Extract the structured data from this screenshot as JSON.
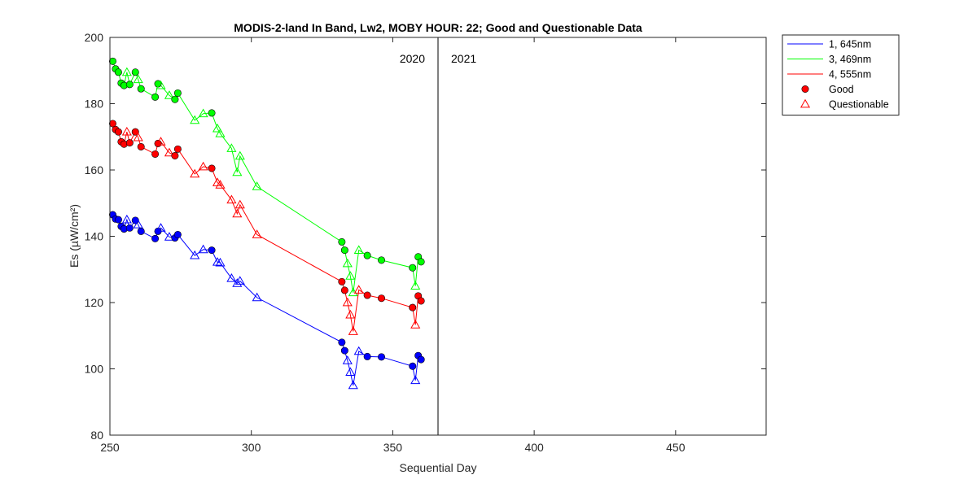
{
  "chart_data": {
    "type": "line",
    "title": "MODIS-2-land In Band,  Lw2, MOBY HOUR: 22;  Good and Questionable Data",
    "xlabel": "Sequential Day",
    "ylabel": "Es (µW/cm²)",
    "xlim": [
      250,
      482
    ],
    "ylim": [
      80,
      200
    ],
    "xticks": [
      250,
      300,
      350,
      400,
      450
    ],
    "yticks": [
      80,
      100,
      120,
      140,
      160,
      180,
      200
    ],
    "year_divider_x": 366,
    "annotations": [
      {
        "text": "2020",
        "x": 366,
        "side": "left"
      },
      {
        "text": "2021",
        "x": 366,
        "side": "right"
      }
    ],
    "legend": {
      "position": "outside-top-right",
      "entries": [
        {
          "label": "1, 645nm",
          "kind": "line",
          "color": "#0000ff"
        },
        {
          "label": "3, 469nm",
          "kind": "line",
          "color": "#00ff00"
        },
        {
          "label": "4, 555nm",
          "kind": "line",
          "color": "#ff0000"
        },
        {
          "label": "Good",
          "kind": "circle",
          "color": "#ff0000"
        },
        {
          "label": "Questionable",
          "kind": "triangle",
          "color": "#ff0000"
        }
      ]
    },
    "series": [
      {
        "name": "1, 645nm",
        "color": "#0000ff",
        "points": [
          {
            "x": 251,
            "y": 146.5,
            "q": "good"
          },
          {
            "x": 252,
            "y": 145.2,
            "q": "good"
          },
          {
            "x": 253,
            "y": 145.0,
            "q": "good"
          },
          {
            "x": 254,
            "y": 143.0,
            "q": "good"
          },
          {
            "x": 255,
            "y": 142.2,
            "q": "good"
          },
          {
            "x": 256,
            "y": 145.0,
            "q": "questionable"
          },
          {
            "x": 257,
            "y": 142.5,
            "q": "good"
          },
          {
            "x": 259,
            "y": 144.8,
            "q": "good"
          },
          {
            "x": 260,
            "y": 143.5,
            "q": "questionable"
          },
          {
            "x": 261,
            "y": 141.5,
            "q": "good"
          },
          {
            "x": 266,
            "y": 139.3,
            "q": "good"
          },
          {
            "x": 267,
            "y": 141.5,
            "q": "good"
          },
          {
            "x": 268,
            "y": 142.5,
            "q": "questionable"
          },
          {
            "x": 271,
            "y": 139.8,
            "q": "questionable"
          },
          {
            "x": 273,
            "y": 139.5,
            "q": "good"
          },
          {
            "x": 274,
            "y": 140.5,
            "q": "good"
          },
          {
            "x": 280,
            "y": 134.2,
            "q": "questionable"
          },
          {
            "x": 283,
            "y": 136.0,
            "q": "questionable"
          },
          {
            "x": 286,
            "y": 135.8,
            "q": "good"
          },
          {
            "x": 288,
            "y": 132.2,
            "q": "questionable"
          },
          {
            "x": 289,
            "y": 132.0,
            "q": "questionable"
          },
          {
            "x": 293,
            "y": 127.3,
            "q": "questionable"
          },
          {
            "x": 295,
            "y": 125.8,
            "q": "questionable"
          },
          {
            "x": 296,
            "y": 126.5,
            "q": "questionable"
          },
          {
            "x": 302,
            "y": 121.5,
            "q": "questionable"
          },
          {
            "x": 332,
            "y": 108.0,
            "q": "good"
          },
          {
            "x": 333,
            "y": 105.5,
            "q": "good"
          },
          {
            "x": 334,
            "y": 102.5,
            "q": "questionable"
          },
          {
            "x": 335,
            "y": 99.0,
            "q": "questionable"
          },
          {
            "x": 336,
            "y": 95.0,
            "q": "questionable"
          },
          {
            "x": 338,
            "y": 105.3,
            "q": "questionable"
          },
          {
            "x": 341,
            "y": 103.7,
            "q": "good"
          },
          {
            "x": 346,
            "y": 103.6,
            "q": "good"
          },
          {
            "x": 357,
            "y": 100.8,
            "q": "good"
          },
          {
            "x": 358,
            "y": 96.5,
            "q": "questionable"
          },
          {
            "x": 359,
            "y": 104.0,
            "q": "good"
          },
          {
            "x": 360,
            "y": 102.8,
            "q": "good"
          }
        ]
      },
      {
        "name": "3, 469nm",
        "color": "#00ff00",
        "points": [
          {
            "x": 251,
            "y": 192.8,
            "q": "good"
          },
          {
            "x": 252,
            "y": 190.5,
            "q": "good"
          },
          {
            "x": 253,
            "y": 189.5,
            "q": "good"
          },
          {
            "x": 254,
            "y": 186.2,
            "q": "good"
          },
          {
            "x": 255,
            "y": 185.5,
            "q": "good"
          },
          {
            "x": 256,
            "y": 189.5,
            "q": "questionable"
          },
          {
            "x": 257,
            "y": 185.8,
            "q": "good"
          },
          {
            "x": 259,
            "y": 189.5,
            "q": "good"
          },
          {
            "x": 260,
            "y": 187.3,
            "q": "questionable"
          },
          {
            "x": 261,
            "y": 184.5,
            "q": "good"
          },
          {
            "x": 266,
            "y": 182.0,
            "q": "good"
          },
          {
            "x": 267,
            "y": 186.0,
            "q": "good"
          },
          {
            "x": 268,
            "y": 185.5,
            "q": "questionable"
          },
          {
            "x": 271,
            "y": 182.5,
            "q": "questionable"
          },
          {
            "x": 273,
            "y": 181.3,
            "q": "good"
          },
          {
            "x": 274,
            "y": 183.2,
            "q": "good"
          },
          {
            "x": 280,
            "y": 175.0,
            "q": "questionable"
          },
          {
            "x": 283,
            "y": 177.0,
            "q": "questionable"
          },
          {
            "x": 286,
            "y": 177.2,
            "q": "good"
          },
          {
            "x": 288,
            "y": 172.5,
            "q": "questionable"
          },
          {
            "x": 289,
            "y": 171.0,
            "q": "questionable"
          },
          {
            "x": 293,
            "y": 166.5,
            "q": "questionable"
          },
          {
            "x": 295,
            "y": 159.3,
            "q": "questionable"
          },
          {
            "x": 296,
            "y": 164.2,
            "q": "questionable"
          },
          {
            "x": 302,
            "y": 155.0,
            "q": "questionable"
          },
          {
            "x": 332,
            "y": 138.3,
            "q": "good"
          },
          {
            "x": 333,
            "y": 135.8,
            "q": "good"
          },
          {
            "x": 334,
            "y": 131.8,
            "q": "questionable"
          },
          {
            "x": 335,
            "y": 128.0,
            "q": "questionable"
          },
          {
            "x": 336,
            "y": 123.0,
            "q": "questionable"
          },
          {
            "x": 338,
            "y": 135.8,
            "q": "questionable"
          },
          {
            "x": 341,
            "y": 134.2,
            "q": "good"
          },
          {
            "x": 346,
            "y": 132.8,
            "q": "good"
          },
          {
            "x": 357,
            "y": 130.5,
            "q": "good"
          },
          {
            "x": 358,
            "y": 125.0,
            "q": "questionable"
          },
          {
            "x": 359,
            "y": 133.8,
            "q": "good"
          },
          {
            "x": 360,
            "y": 132.3,
            "q": "good"
          }
        ]
      },
      {
        "name": "4, 555nm",
        "color": "#ff0000",
        "points": [
          {
            "x": 251,
            "y": 174.0,
            "q": "good"
          },
          {
            "x": 252,
            "y": 172.2,
            "q": "good"
          },
          {
            "x": 253,
            "y": 171.5,
            "q": "good"
          },
          {
            "x": 254,
            "y": 168.5,
            "q": "good"
          },
          {
            "x": 255,
            "y": 167.8,
            "q": "good"
          },
          {
            "x": 256,
            "y": 171.5,
            "q": "questionable"
          },
          {
            "x": 257,
            "y": 168.2,
            "q": "good"
          },
          {
            "x": 259,
            "y": 171.5,
            "q": "good"
          },
          {
            "x": 260,
            "y": 169.8,
            "q": "questionable"
          },
          {
            "x": 261,
            "y": 167.0,
            "q": "good"
          },
          {
            "x": 266,
            "y": 164.8,
            "q": "good"
          },
          {
            "x": 267,
            "y": 168.0,
            "q": "good"
          },
          {
            "x": 268,
            "y": 168.5,
            "q": "questionable"
          },
          {
            "x": 271,
            "y": 165.2,
            "q": "questionable"
          },
          {
            "x": 273,
            "y": 164.3,
            "q": "good"
          },
          {
            "x": 274,
            "y": 166.3,
            "q": "good"
          },
          {
            "x": 280,
            "y": 158.8,
            "q": "questionable"
          },
          {
            "x": 283,
            "y": 161.0,
            "q": "questionable"
          },
          {
            "x": 286,
            "y": 160.5,
            "q": "good"
          },
          {
            "x": 288,
            "y": 156.2,
            "q": "questionable"
          },
          {
            "x": 289,
            "y": 155.5,
            "q": "questionable"
          },
          {
            "x": 293,
            "y": 151.0,
            "q": "questionable"
          },
          {
            "x": 295,
            "y": 146.8,
            "q": "questionable"
          },
          {
            "x": 296,
            "y": 149.5,
            "q": "questionable"
          },
          {
            "x": 302,
            "y": 140.5,
            "q": "questionable"
          },
          {
            "x": 332,
            "y": 126.3,
            "q": "good"
          },
          {
            "x": 333,
            "y": 123.7,
            "q": "good"
          },
          {
            "x": 334,
            "y": 120.0,
            "q": "questionable"
          },
          {
            "x": 335,
            "y": 116.3,
            "q": "questionable"
          },
          {
            "x": 336,
            "y": 111.3,
            "q": "questionable"
          },
          {
            "x": 338,
            "y": 123.8,
            "q": "questionable"
          },
          {
            "x": 341,
            "y": 122.2,
            "q": "good"
          },
          {
            "x": 346,
            "y": 121.3,
            "q": "good"
          },
          {
            "x": 357,
            "y": 118.5,
            "q": "good"
          },
          {
            "x": 358,
            "y": 113.3,
            "q": "questionable"
          },
          {
            "x": 359,
            "y": 122.0,
            "q": "good"
          },
          {
            "x": 360,
            "y": 120.5,
            "q": "good"
          }
        ]
      }
    ]
  }
}
